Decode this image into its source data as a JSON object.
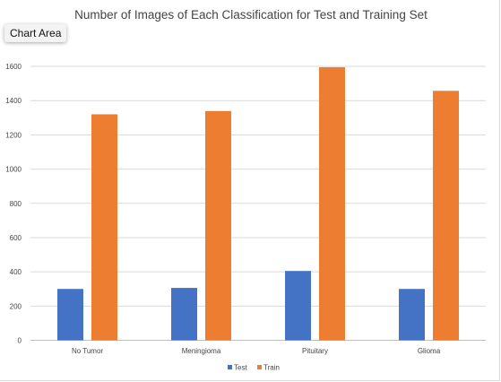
{
  "tooltip": "Chart Area",
  "chart_data": {
    "type": "bar",
    "title": "Number of Images of Each Classification for Test and Training Set",
    "categories": [
      "No Tumor",
      "Meningioma",
      "Pituitary",
      "Glioma"
    ],
    "series": [
      {
        "name": "Test",
        "values": [
          300,
          306,
          405,
          300
        ],
        "color": "#4472c4"
      },
      {
        "name": "Train",
        "values": [
          1320,
          1339,
          1595,
          1457
        ],
        "color": "#ed7d31"
      }
    ],
    "ylim": [
      0,
      1600
    ],
    "yticks": [
      0,
      200,
      400,
      600,
      800,
      1000,
      1200,
      1400,
      1600
    ],
    "grid": true,
    "legend": "bottom",
    "xlabel": "",
    "ylabel": ""
  }
}
